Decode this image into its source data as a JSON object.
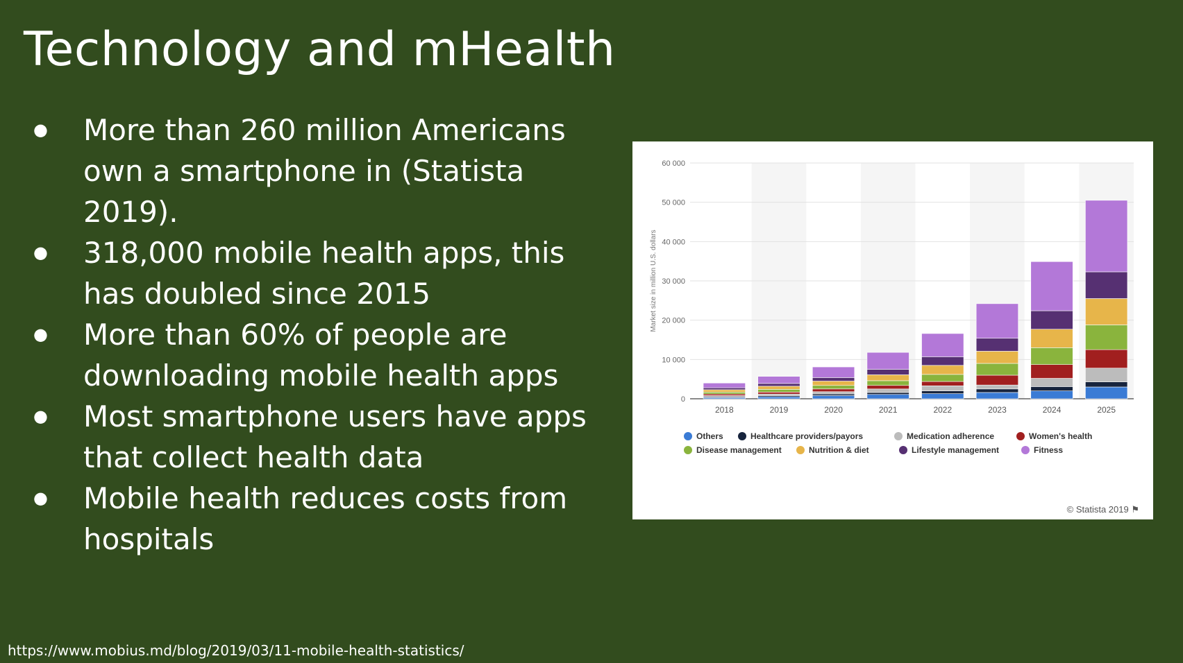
{
  "slide": {
    "title": "Technology  and mHealth",
    "bullets": [
      "More than 260 million Americans own a smartphone in (Statista 2019).",
      "318,000 mobile health apps, this has doubled since 2015",
      "More than 60% of people are downloading mobile health apps",
      "Most smartphone users have apps that collect health data",
      "Mobile health reduces costs from hospitals"
    ],
    "source_url": "https://www.mobius.md/blog/2019/03/11-mobile-health-statistics/"
  },
  "chart_credit": "© Statista 2019",
  "chart_data": {
    "type": "bar",
    "stacked": true,
    "ylabel": "Market size in million U.S. dollars",
    "ylim": [
      0,
      60000
    ],
    "yticks": [
      "0",
      "10 000",
      "20 000",
      "30 000",
      "40 000",
      "50 000",
      "60 000"
    ],
    "categories": [
      "2018",
      "2019",
      "2020",
      "2021",
      "2022",
      "2023",
      "2024",
      "2025"
    ],
    "legend_position": "bottom",
    "series": [
      {
        "name": "Others",
        "color": "#3a7bd5",
        "values": [
          300,
          500,
          800,
          1100,
          1300,
          1600,
          2000,
          3000
        ]
      },
      {
        "name": "Healthcare providers/payors",
        "color": "#17243d",
        "values": [
          200,
          300,
          400,
          500,
          700,
          900,
          1100,
          1300
        ]
      },
      {
        "name": "Medication adherence",
        "color": "#bcbcbc",
        "values": [
          300,
          400,
          600,
          900,
          1300,
          1000,
          2100,
          3500
        ]
      },
      {
        "name": "Women's health",
        "color": "#a11f1f",
        "values": [
          400,
          500,
          700,
          900,
          1100,
          2500,
          3500,
          4700
        ]
      },
      {
        "name": "Disease management",
        "color": "#8ab43d",
        "values": [
          500,
          700,
          900,
          1200,
          1800,
          3000,
          4300,
          6300
        ]
      },
      {
        "name": "Nutrition & diet",
        "color": "#e7b54a",
        "values": [
          600,
          800,
          1100,
          1500,
          2300,
          3100,
          4700,
          6700
        ]
      },
      {
        "name": "Lifestyle management",
        "color": "#563072",
        "values": [
          500,
          700,
          900,
          1400,
          2200,
          3300,
          4700,
          6800
        ]
      },
      {
        "name": "Fitness",
        "color": "#b378d8",
        "values": [
          1200,
          1800,
          2700,
          4300,
          5900,
          8800,
          12500,
          18200
        ]
      }
    ]
  }
}
